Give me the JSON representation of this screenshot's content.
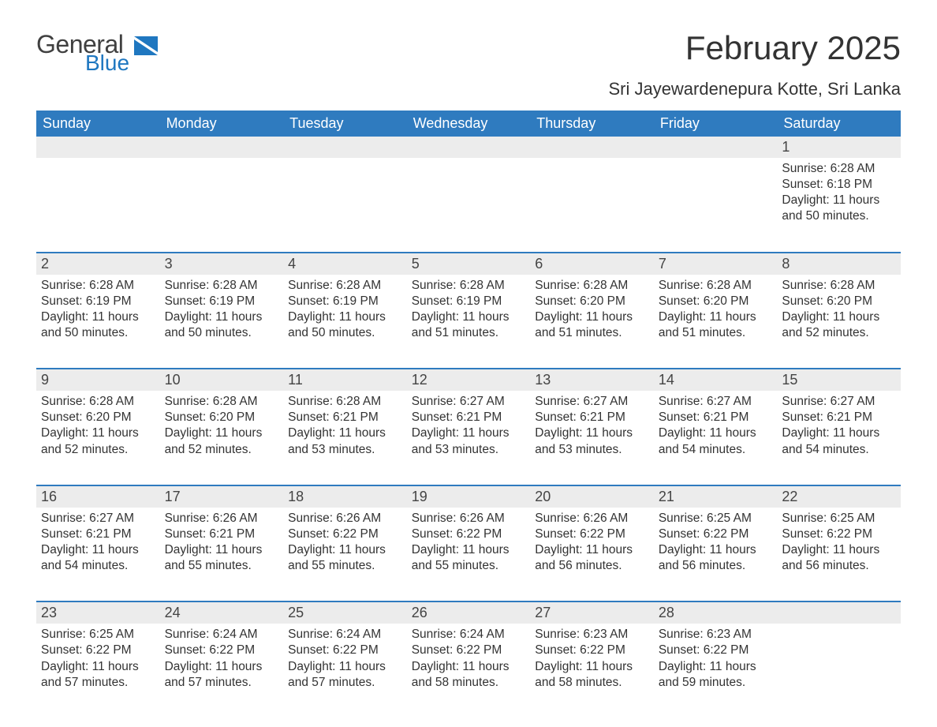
{
  "brand": {
    "word1": "General",
    "word2": "Blue",
    "word1_color": "#404040",
    "word2_color": "#1f77c0",
    "icon_color": "#1f77c0"
  },
  "title": "February 2025",
  "location": "Sri Jayewardenepura Kotte, Sri Lanka",
  "header_bg": "#2f7bbf",
  "row_separator_color": "#2f7bbf",
  "daynum_bg": "#ececec",
  "text_color": "#333333",
  "weekdays": [
    "Sunday",
    "Monday",
    "Tuesday",
    "Wednesday",
    "Thursday",
    "Friday",
    "Saturday"
  ],
  "weeks": [
    [
      null,
      null,
      null,
      null,
      null,
      null,
      {
        "n": "1",
        "sunrise": "6:28 AM",
        "sunset": "6:18 PM",
        "daylight": "11 hours and 50 minutes."
      }
    ],
    [
      {
        "n": "2",
        "sunrise": "6:28 AM",
        "sunset": "6:19 PM",
        "daylight": "11 hours and 50 minutes."
      },
      {
        "n": "3",
        "sunrise": "6:28 AM",
        "sunset": "6:19 PM",
        "daylight": "11 hours and 50 minutes."
      },
      {
        "n": "4",
        "sunrise": "6:28 AM",
        "sunset": "6:19 PM",
        "daylight": "11 hours and 50 minutes."
      },
      {
        "n": "5",
        "sunrise": "6:28 AM",
        "sunset": "6:19 PM",
        "daylight": "11 hours and 51 minutes."
      },
      {
        "n": "6",
        "sunrise": "6:28 AM",
        "sunset": "6:20 PM",
        "daylight": "11 hours and 51 minutes."
      },
      {
        "n": "7",
        "sunrise": "6:28 AM",
        "sunset": "6:20 PM",
        "daylight": "11 hours and 51 minutes."
      },
      {
        "n": "8",
        "sunrise": "6:28 AM",
        "sunset": "6:20 PM",
        "daylight": "11 hours and 52 minutes."
      }
    ],
    [
      {
        "n": "9",
        "sunrise": "6:28 AM",
        "sunset": "6:20 PM",
        "daylight": "11 hours and 52 minutes."
      },
      {
        "n": "10",
        "sunrise": "6:28 AM",
        "sunset": "6:20 PM",
        "daylight": "11 hours and 52 minutes."
      },
      {
        "n": "11",
        "sunrise": "6:28 AM",
        "sunset": "6:21 PM",
        "daylight": "11 hours and 53 minutes."
      },
      {
        "n": "12",
        "sunrise": "6:27 AM",
        "sunset": "6:21 PM",
        "daylight": "11 hours and 53 minutes."
      },
      {
        "n": "13",
        "sunrise": "6:27 AM",
        "sunset": "6:21 PM",
        "daylight": "11 hours and 53 minutes."
      },
      {
        "n": "14",
        "sunrise": "6:27 AM",
        "sunset": "6:21 PM",
        "daylight": "11 hours and 54 minutes."
      },
      {
        "n": "15",
        "sunrise": "6:27 AM",
        "sunset": "6:21 PM",
        "daylight": "11 hours and 54 minutes."
      }
    ],
    [
      {
        "n": "16",
        "sunrise": "6:27 AM",
        "sunset": "6:21 PM",
        "daylight": "11 hours and 54 minutes."
      },
      {
        "n": "17",
        "sunrise": "6:26 AM",
        "sunset": "6:21 PM",
        "daylight": "11 hours and 55 minutes."
      },
      {
        "n": "18",
        "sunrise": "6:26 AM",
        "sunset": "6:22 PM",
        "daylight": "11 hours and 55 minutes."
      },
      {
        "n": "19",
        "sunrise": "6:26 AM",
        "sunset": "6:22 PM",
        "daylight": "11 hours and 55 minutes."
      },
      {
        "n": "20",
        "sunrise": "6:26 AM",
        "sunset": "6:22 PM",
        "daylight": "11 hours and 56 minutes."
      },
      {
        "n": "21",
        "sunrise": "6:25 AM",
        "sunset": "6:22 PM",
        "daylight": "11 hours and 56 minutes."
      },
      {
        "n": "22",
        "sunrise": "6:25 AM",
        "sunset": "6:22 PM",
        "daylight": "11 hours and 56 minutes."
      }
    ],
    [
      {
        "n": "23",
        "sunrise": "6:25 AM",
        "sunset": "6:22 PM",
        "daylight": "11 hours and 57 minutes."
      },
      {
        "n": "24",
        "sunrise": "6:24 AM",
        "sunset": "6:22 PM",
        "daylight": "11 hours and 57 minutes."
      },
      {
        "n": "25",
        "sunrise": "6:24 AM",
        "sunset": "6:22 PM",
        "daylight": "11 hours and 57 minutes."
      },
      {
        "n": "26",
        "sunrise": "6:24 AM",
        "sunset": "6:22 PM",
        "daylight": "11 hours and 58 minutes."
      },
      {
        "n": "27",
        "sunrise": "6:23 AM",
        "sunset": "6:22 PM",
        "daylight": "11 hours and 58 minutes."
      },
      {
        "n": "28",
        "sunrise": "6:23 AM",
        "sunset": "6:22 PM",
        "daylight": "11 hours and 59 minutes."
      },
      null
    ]
  ],
  "labels": {
    "sunrise": "Sunrise: ",
    "sunset": "Sunset: ",
    "daylight": "Daylight: "
  }
}
